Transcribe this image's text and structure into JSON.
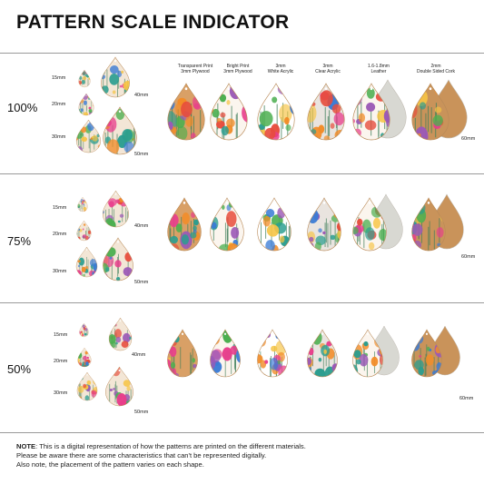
{
  "title": "PATTERN SCALE INDICATOR",
  "materials": [
    {
      "line1": "Transparent Print",
      "line2": "3mm Plywood"
    },
    {
      "line1": "Bright Print",
      "line2": "3mm Plywood"
    },
    {
      "line1": "3mm",
      "line2": "White Acrylic"
    },
    {
      "line1": "3mm",
      "line2": "Clear Acrylic"
    },
    {
      "line1": "1.6-1.8mm",
      "line2": "Leather"
    },
    {
      "line1": "2mm",
      "line2": "Double Sided Cork"
    }
  ],
  "rows": [
    {
      "scale": "100%",
      "sizes": {
        "s15": "15mm",
        "s20": "20mm",
        "s30": "30mm",
        "s40": "40mm",
        "s50": "50mm",
        "s60": "60mm"
      }
    },
    {
      "scale": "75%",
      "sizes": {
        "s15": "15mm",
        "s20": "20mm",
        "s30": "30mm",
        "s40": "40mm",
        "s50": "50mm",
        "s60": "60mm"
      }
    },
    {
      "scale": "50%",
      "sizes": {
        "s15": "15mm",
        "s20": "20mm",
        "s30": "30mm",
        "s40": "40mm",
        "s50": "50mm",
        "s60": "60mm"
      }
    }
  ],
  "note": {
    "label": "NOTE",
    "line1": ": This is a digital representation of how the patterns are printed on the different materials.",
    "line2": "Please be aware there are some characteristics that can't be represented digitally.",
    "line3": "Also note, the placement of the pattern varies on each shape."
  },
  "colors": {
    "wood": "#d9a066",
    "cork": "#c9935a",
    "leather": "#d8d8d2",
    "clear": "#e9e4df",
    "accents": [
      "#e83e8c",
      "#f28c28",
      "#2a9d8f",
      "#f6c445",
      "#3a7bd5",
      "#9b59b6",
      "#e74c3c",
      "#4caf50"
    ]
  }
}
